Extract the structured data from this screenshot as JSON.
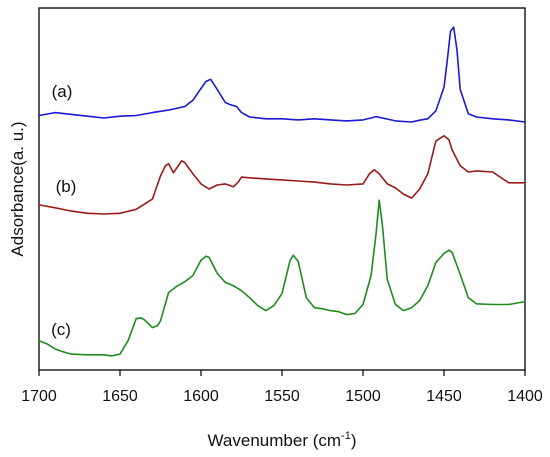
{
  "chart_data": {
    "type": "line",
    "title": "",
    "xlabel": "Wavenumber (cm",
    "xlabel_sup": "-1",
    "xlabel_close": ")",
    "ylabel": "Adsorbance(a. u.)",
    "xlim": [
      1700,
      1400
    ],
    "ylim": [
      0,
      100
    ],
    "x_reversed": true,
    "xticks": [
      1700,
      1650,
      1600,
      1550,
      1500,
      1450,
      1400
    ],
    "xtick_labels": [
      "1700",
      "1650",
      "1600",
      "1550",
      "1500",
      "1450",
      "1400"
    ],
    "y_tick_labels_shown": false,
    "grid": false,
    "series": [
      {
        "name": "(a)",
        "color": "#1a1ad0",
        "x": [
          1700,
          1690,
          1680,
          1670,
          1660,
          1650,
          1640,
          1630,
          1620,
          1610,
          1605,
          1600,
          1597,
          1594,
          1590,
          1585,
          1582,
          1578,
          1575,
          1570,
          1560,
          1550,
          1540,
          1530,
          1520,
          1510,
          1500,
          1495,
          1492,
          1488,
          1480,
          1470,
          1465,
          1460,
          1455,
          1450,
          1448,
          1446,
          1444,
          1442,
          1440,
          1435,
          1430,
          1420,
          1410,
          1400
        ],
        "y": [
          70.3,
          71.1,
          70.6,
          70.1,
          69.6,
          70.1,
          70.3,
          71.1,
          71.8,
          72.8,
          74.5,
          77.8,
          79.7,
          80.3,
          77.5,
          73.9,
          73.3,
          72.8,
          71.1,
          69.9,
          69.4,
          69.4,
          69.1,
          69.4,
          69.1,
          68.8,
          69.1,
          69.6,
          70.0,
          69.6,
          68.8,
          68.5,
          69.0,
          69.4,
          71.6,
          78.1,
          85.3,
          93.6,
          94.7,
          88.4,
          77.5,
          70.8,
          69.9,
          69.4,
          69.1,
          68.5
        ]
      },
      {
        "name": "(b)",
        "color": "#9b1a1a",
        "x": [
          1700,
          1690,
          1680,
          1670,
          1660,
          1650,
          1640,
          1630,
          1625,
          1622,
          1620,
          1617,
          1615,
          1612,
          1610,
          1605,
          1600,
          1595,
          1590,
          1585,
          1580,
          1577,
          1575,
          1570,
          1560,
          1550,
          1540,
          1530,
          1520,
          1510,
          1500,
          1496,
          1493,
          1490,
          1485,
          1480,
          1475,
          1470,
          1465,
          1460,
          1455,
          1450,
          1447,
          1445,
          1440,
          1435,
          1430,
          1420,
          1410,
          1400
        ],
        "y": [
          45.6,
          44.8,
          43.9,
          43.3,
          43.1,
          43.3,
          44.4,
          47.2,
          53.6,
          56.4,
          57.0,
          54.5,
          55.8,
          57.8,
          57.3,
          54.2,
          51.4,
          50.0,
          51.1,
          51.4,
          50.6,
          51.9,
          53.3,
          53.1,
          52.8,
          52.5,
          52.2,
          51.9,
          51.4,
          51.1,
          51.4,
          54.2,
          55.3,
          54.2,
          51.4,
          50.3,
          48.6,
          47.5,
          50.0,
          54.2,
          63.3,
          64.7,
          63.6,
          60.8,
          56.4,
          54.7,
          55.0,
          54.7,
          51.7,
          51.7
        ]
      },
      {
        "name": "(c)",
        "color": "#1e8c1e",
        "x": [
          1700,
          1695,
          1690,
          1685,
          1680,
          1670,
          1660,
          1655,
          1650,
          1645,
          1640,
          1637,
          1635,
          1630,
          1627,
          1625,
          1620,
          1615,
          1610,
          1605,
          1600,
          1597,
          1595,
          1590,
          1585,
          1580,
          1575,
          1570,
          1565,
          1560,
          1555,
          1550,
          1545,
          1543,
          1540,
          1535,
          1530,
          1525,
          1520,
          1515,
          1510,
          1505,
          1500,
          1495,
          1492,
          1490,
          1488,
          1485,
          1480,
          1475,
          1470,
          1465,
          1460,
          1455,
          1450,
          1447,
          1445,
          1440,
          1435,
          1430,
          1420,
          1410,
          1400
        ],
        "y": [
          8.1,
          7.2,
          5.8,
          5.0,
          4.4,
          4.2,
          4.2,
          3.9,
          4.4,
          8.1,
          14.2,
          14.4,
          13.9,
          11.7,
          12.2,
          13.6,
          21.4,
          23.1,
          24.4,
          26.1,
          30.3,
          31.4,
          31.1,
          26.7,
          24.2,
          23.3,
          21.9,
          20.0,
          17.8,
          16.4,
          17.8,
          21.1,
          30.3,
          31.7,
          30.0,
          20.0,
          17.2,
          16.9,
          16.4,
          16.1,
          15.3,
          15.6,
          18.1,
          26.1,
          37.5,
          46.9,
          40.0,
          25.0,
          18.1,
          16.4,
          17.2,
          19.2,
          23.3,
          29.7,
          32.2,
          33.1,
          32.5,
          26.4,
          20.0,
          18.3,
          18.1,
          18.1,
          18.9
        ]
      }
    ]
  }
}
